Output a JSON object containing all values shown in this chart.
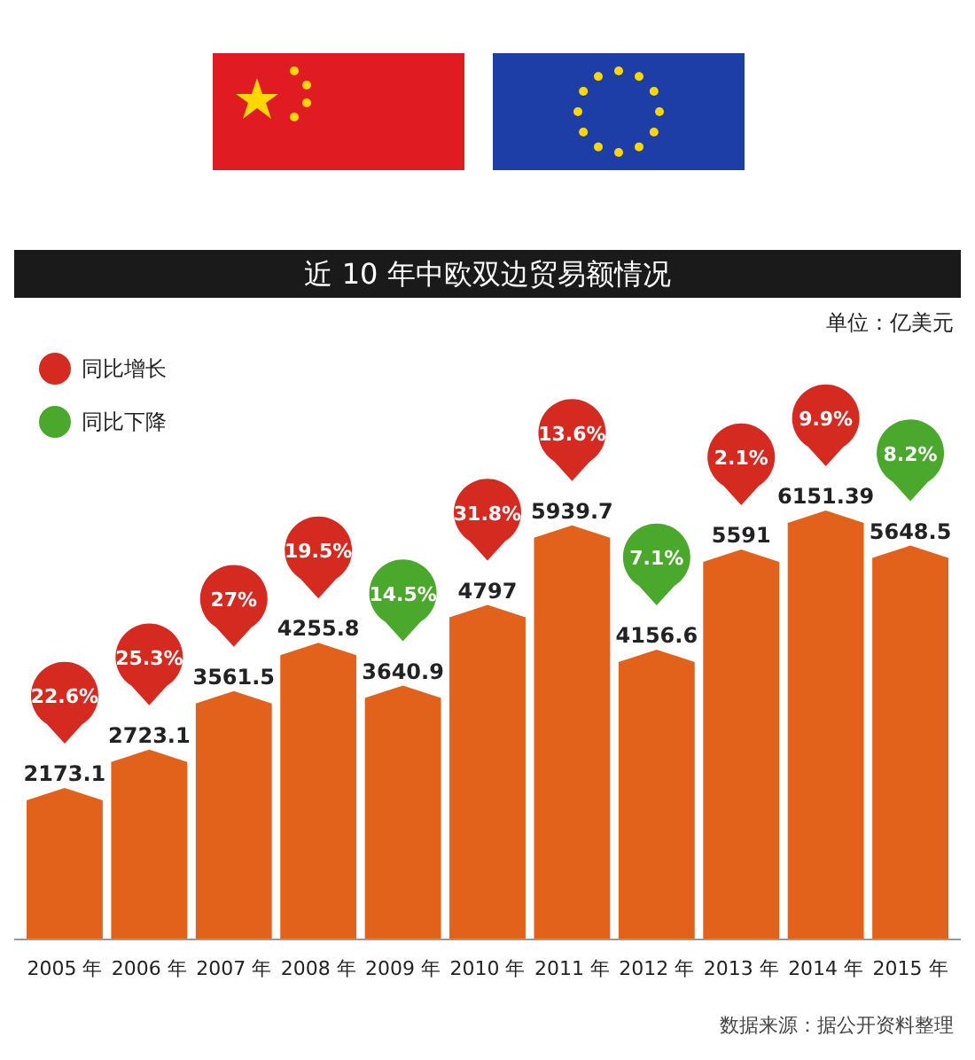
{
  "chart_data": {
    "type": "bar",
    "title": "近 10 年中欧双边贸易额情况",
    "subtitle": "单位：亿美元",
    "categories": [
      "2005 年",
      "2006 年",
      "2007 年",
      "2008 年",
      "2009 年",
      "2010 年",
      "2011 年",
      "2012 年",
      "2013 年",
      "2014 年",
      "2015 年"
    ],
    "series": [
      {
        "color": "#e2621b",
        "values": [
          2173.1,
          2723.1,
          3561.5,
          4255.8,
          3640.9,
          4797,
          5939.7,
          4156.6,
          5591,
          6151.39,
          5648.5
        ]
      },
      {
        "type": "scatter",
        "name": "同比增长",
        "color": "#d42a20",
        "x": [
          "2005 年",
          "2006 年",
          "2007 年",
          "2008 年",
          "2010 年",
          "2011 年",
          "2013 年",
          "2014 年"
        ],
        "values": [
          null,
          null,
          null,
          null,
          null,
          null,
          null,
          null
        ]
      },
      {
        "type": "scatter",
        "name": "同比下降",
        "color": "#4aa82c",
        "x": [
          "2009 年",
          "2012 年",
          "2015 年"
        ],
        "values": [
          null,
          null,
          null
        ]
      }
    ],
    "data_labels": true,
    "legend": "top left",
    "annotations": [
      "22.6%",
      "25.3%",
      "27%",
      "19.5%",
      "14.5%",
      "31.8%",
      "13.6%",
      "7.1%",
      "2.1%",
      "9.9%",
      "8.2%",
      "数据来源：据公开资料整理"
    ]
  }
}
